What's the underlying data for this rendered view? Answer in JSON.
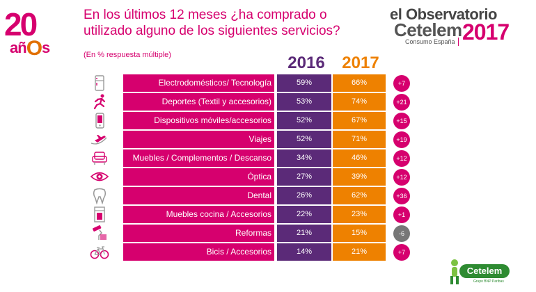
{
  "logo": {
    "number": "20",
    "word_a": "añ",
    "word_o": "O",
    "word_s": "s"
  },
  "title": "En los últimos 12 meses ¿ha comprado o utilizado alguno de los siguientes servicios?",
  "subtitle": "(En % respuesta múltiple)",
  "brand": {
    "line1_el": "el",
    "line1": "Observatorio",
    "line2": "Cetelem",
    "line3": "Consumo España",
    "year": "2017"
  },
  "footer_logo": {
    "name": "Cetelem",
    "tagline": "Grupo BNP Paribas"
  },
  "colors": {
    "magenta": "#d6006e",
    "purple": "#5b2a78",
    "orange": "#ee8100",
    "grey": "#777777"
  },
  "chart_data": {
    "type": "table",
    "title": "En los últimos 12 meses ¿ha comprado o utilizado alguno de los siguientes servicios?",
    "subtitle": "(En % respuesta múltiple)",
    "columns": [
      "2016",
      "2017"
    ],
    "rows": [
      {
        "label": "Electrodomésticos/ Tecnología",
        "v2016": "59%",
        "v2017": "66%",
        "diff": "+7",
        "icon": "fridge-icon"
      },
      {
        "label": "Deportes (Textil y accesorios)",
        "v2016": "53%",
        "v2017": "74%",
        "diff": "+21",
        "icon": "runner-icon"
      },
      {
        "label": "Dispositivos móviles/accesorios",
        "v2016": "52%",
        "v2017": "67%",
        "diff": "+15",
        "icon": "mobile-phone-icon"
      },
      {
        "label": "Viajes",
        "v2016": "52%",
        "v2017": "71%",
        "diff": "+19",
        "icon": "plane-icon"
      },
      {
        "label": "Muebles / Complementos / Descanso",
        "v2016": "34%",
        "v2017": "46%",
        "diff": "+12",
        "icon": "armchair-icon"
      },
      {
        "label": "Óptica",
        "v2016": "27%",
        "v2017": "39%",
        "diff": "+12",
        "icon": "eye-icon"
      },
      {
        "label": "Dental",
        "v2016": "26%",
        "v2017": "62%",
        "diff": "+36",
        "icon": "tooth-icon"
      },
      {
        "label": "Muebles cocina / Accesorios",
        "v2016": "22%",
        "v2017": "23%",
        "diff": "+1",
        "icon": "oven-icon"
      },
      {
        "label": "Reformas",
        "v2016": "21%",
        "v2017": "15%",
        "diff": "-6",
        "icon": "paint-roller-icon"
      },
      {
        "label": "Bicis / Accesorios",
        "v2016": "14%",
        "v2017": "21%",
        "diff": "+7",
        "icon": "bicycle-icon"
      }
    ]
  }
}
